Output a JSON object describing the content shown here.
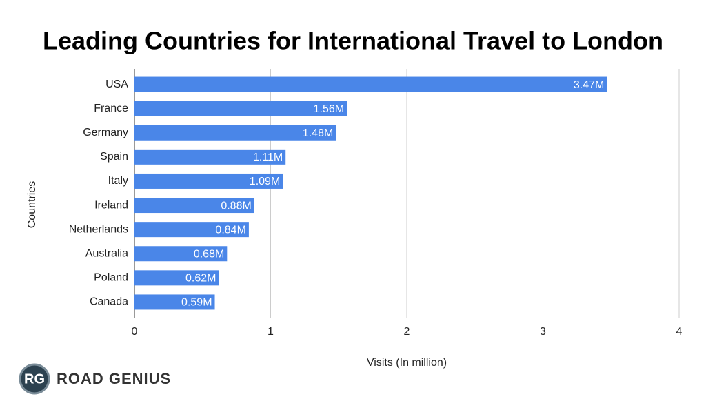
{
  "chart_data": {
    "type": "bar",
    "orientation": "horizontal",
    "title": "Leading Countries for International Travel to London",
    "x_label": "Visits (In million)",
    "y_label": "Countries",
    "categories": [
      "USA",
      "France",
      "Germany",
      "Spain",
      "Italy",
      "Ireland",
      "Netherlands",
      "Australia",
      "Poland",
      "Canada"
    ],
    "values": [
      3.47,
      1.56,
      1.48,
      1.11,
      1.09,
      0.88,
      0.84,
      0.68,
      0.62,
      0.59
    ],
    "value_labels": [
      "3.47M",
      "1.56M",
      "1.48M",
      "1.11M",
      "1.09M",
      "0.88M",
      "0.84M",
      "0.68M",
      "0.62M",
      "0.59M"
    ],
    "color": "#4a86e8",
    "xlim": [
      0,
      4
    ],
    "xticks": [
      0,
      1,
      2,
      3,
      4
    ],
    "grid": true
  },
  "logo": {
    "badge": "RG",
    "name": "ROAD GENIUS"
  }
}
